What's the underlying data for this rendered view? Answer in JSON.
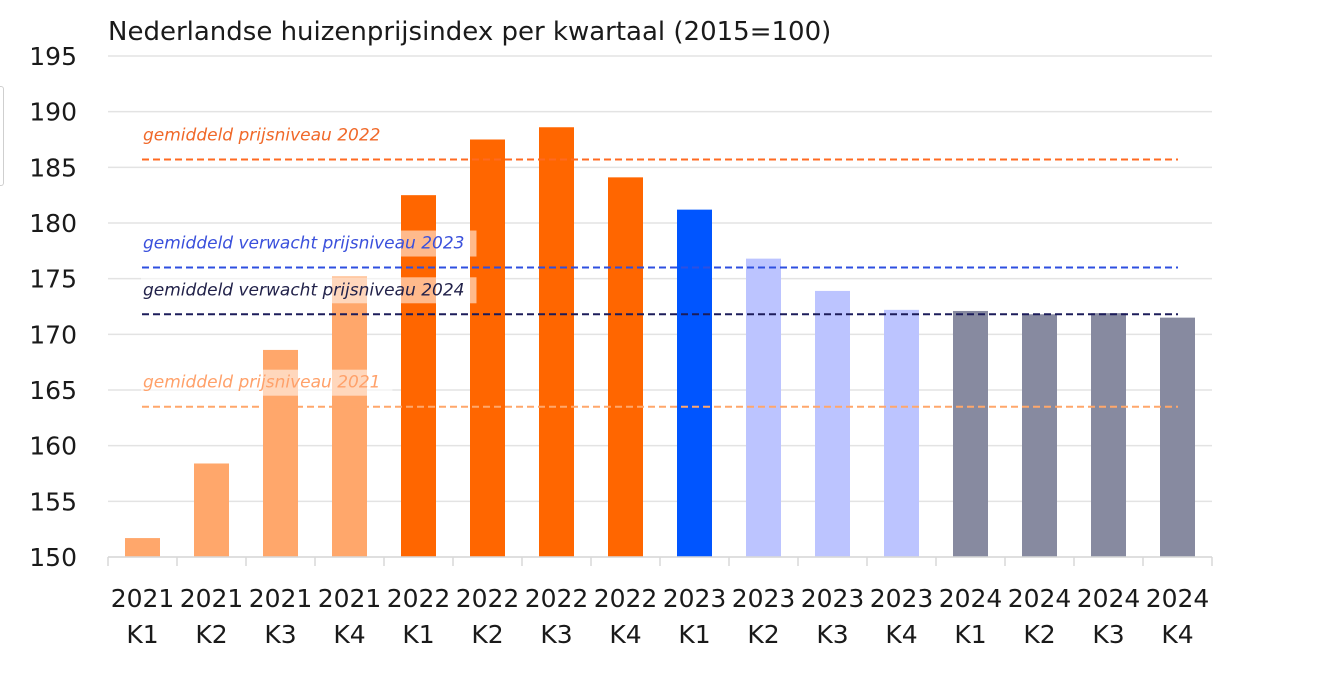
{
  "chart_data": {
    "type": "bar",
    "title": "Nederlandse huizenprijsindex per kwartaal (2015=100)",
    "xlabel": "",
    "ylabel": "",
    "ylim": [
      150,
      195
    ],
    "yticks": [
      150,
      155,
      160,
      165,
      170,
      175,
      180,
      185,
      190,
      195
    ],
    "grid": true,
    "categories": [
      {
        "year": "2021",
        "quarter": "K1"
      },
      {
        "year": "2021",
        "quarter": "K2"
      },
      {
        "year": "2021",
        "quarter": "K3"
      },
      {
        "year": "2021",
        "quarter": "K4"
      },
      {
        "year": "2022",
        "quarter": "K1"
      },
      {
        "year": "2022",
        "quarter": "K2"
      },
      {
        "year": "2022",
        "quarter": "K3"
      },
      {
        "year": "2022",
        "quarter": "K4"
      },
      {
        "year": "2023",
        "quarter": "K1"
      },
      {
        "year": "2023",
        "quarter": "K2"
      },
      {
        "year": "2023",
        "quarter": "K3"
      },
      {
        "year": "2023",
        "quarter": "K4"
      },
      {
        "year": "2024",
        "quarter": "K1"
      },
      {
        "year": "2024",
        "quarter": "K2"
      },
      {
        "year": "2024",
        "quarter": "K3"
      },
      {
        "year": "2024",
        "quarter": "K4"
      }
    ],
    "values": [
      151.7,
      158.4,
      168.6,
      175.2,
      182.5,
      187.5,
      188.6,
      184.1,
      181.2,
      176.8,
      173.9,
      172.2,
      172.1,
      171.8,
      171.9,
      171.5
    ],
    "bar_colors": [
      "#FFA76B",
      "#FFA76B",
      "#FFA76B",
      "#FFA76B",
      "#FF6600",
      "#FF6600",
      "#FF6600",
      "#FF6600",
      "#0055FF",
      "#BCC4FF",
      "#BCC4FF",
      "#BCC4FF",
      "#878AA0",
      "#878AA0",
      "#878AA0",
      "#878AA0"
    ],
    "reference_lines": [
      {
        "label": "gemiddeld prijsniveau 2022",
        "value": 185.7,
        "color": "#FF6A21",
        "label_color": "#F0692A"
      },
      {
        "label": "gemiddeld verwacht prijsniveau 2023",
        "value": 176.0,
        "color": "#2E4FE0",
        "label_color": "#3A50DC"
      },
      {
        "label": "gemiddeld verwacht prijsniveau 2024",
        "value": 171.8,
        "color": "#1C1C5A",
        "label_color": "#22224A"
      },
      {
        "label": "gemiddeld prijsniveau 2021",
        "value": 163.5,
        "color": "#FFA76B",
        "label_color": "#FFA16A"
      }
    ]
  }
}
